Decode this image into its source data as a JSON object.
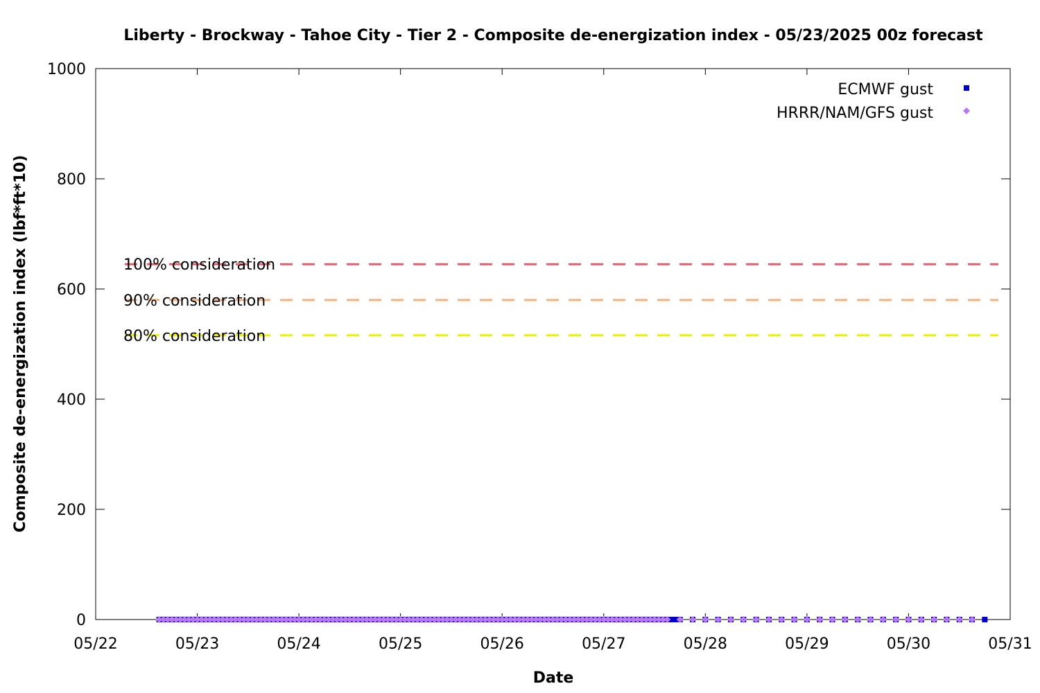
{
  "chart_data": {
    "type": "scatter",
    "title": "Liberty - Brockway - Tahoe City - Tier 2 - Composite de-energization index - 05/23/2025 00z forecast",
    "xlabel": "Date",
    "ylabel": "Composite de-energization index (lbf*ft*10)",
    "xlim": [
      "05/22",
      "05/31"
    ],
    "ylim": [
      0,
      1000
    ],
    "x_ticks": [
      "05/22",
      "05/23",
      "05/24",
      "05/25",
      "05/26",
      "05/27",
      "05/28",
      "05/29",
      "05/30",
      "05/31"
    ],
    "y_ticks": [
      0,
      200,
      400,
      600,
      800,
      1000
    ],
    "grid": false,
    "legend_position": "top-right",
    "thresholds": [
      {
        "label": "100% consideration",
        "value": 645,
        "color": "#e06070"
      },
      {
        "label": "90% consideration",
        "value": 580,
        "color": "#f4b27a"
      },
      {
        "label": "80% consideration",
        "value": 516,
        "color": "#f0f000"
      }
    ],
    "series": [
      {
        "name": "ECMWF gust",
        "marker": "square",
        "color": "#0000cc",
        "x_start": "05/22 15:00",
        "x_end": "05/30 18:00",
        "step_hours_dense": 1,
        "dense_until": "05/27 18:00",
        "step_hours_sparse": 3,
        "values_constant": 0
      },
      {
        "name": "HRRR/NAM/GFS gust",
        "marker": "diamond",
        "color": "#bb77ee",
        "x_start": "05/22 15:00",
        "x_end": "05/30 15:00",
        "step_hours_dense": 1,
        "dense_until": "05/27 15:00",
        "step_hours_sparse": 3,
        "values_constant": 0
      }
    ]
  }
}
